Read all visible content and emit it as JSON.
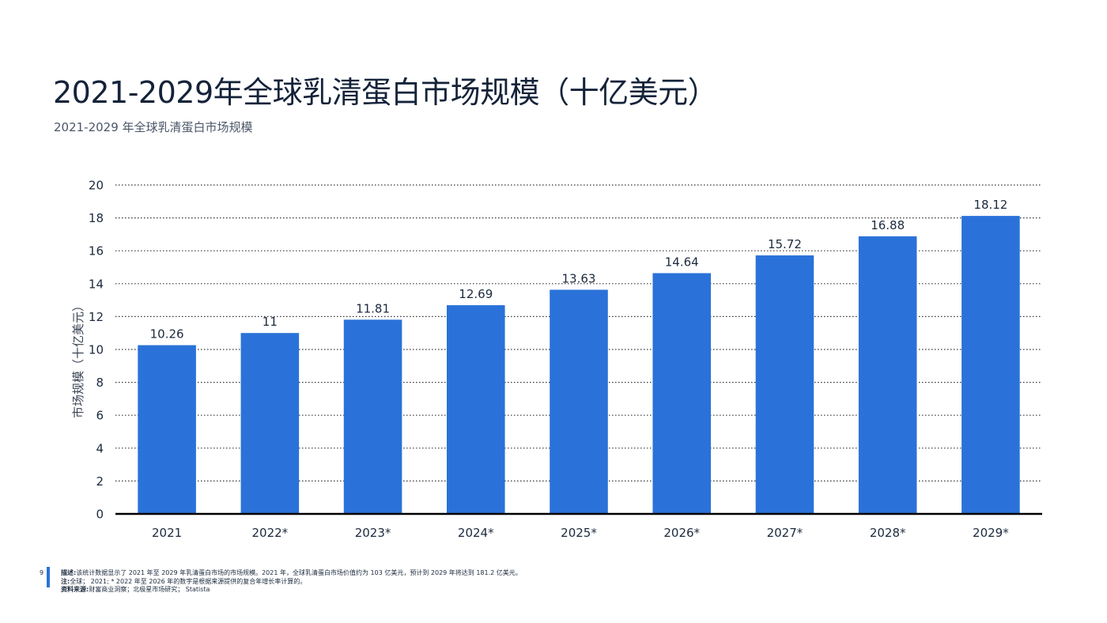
{
  "header": {
    "title": "2021-2029年全球乳清蛋白市场规模（十亿美元）",
    "subtitle": "2021-2029 年全球乳清蛋白市场规模"
  },
  "chart_data": {
    "type": "bar",
    "categories": [
      "2021",
      "2022*",
      "2023*",
      "2024*",
      "2025*",
      "2026*",
      "2027*",
      "2028*",
      "2029*"
    ],
    "values": [
      10.26,
      11,
      11.81,
      12.69,
      13.63,
      14.64,
      15.72,
      16.88,
      18.12
    ],
    "value_labels": [
      "10.26",
      "11",
      "11.81",
      "12.69",
      "13.63",
      "14.64",
      "15.72",
      "16.88",
      "18.12"
    ],
    "xlabel": "",
    "ylabel": "市场规模（十亿美元）",
    "ylim": [
      0,
      20
    ],
    "yticks": [
      0,
      2,
      4,
      6,
      8,
      10,
      12,
      14,
      16,
      18,
      20
    ],
    "grid": "horizontal-dotted",
    "legend": "none",
    "bar_color": "#2a72d9"
  },
  "footer": {
    "page_number": "9",
    "description_label": "描述:",
    "description_text": "该统计数据显示了 2021 年至 2029 年乳清蛋白市场的市场规模。2021 年，全球乳清蛋白市场价值约为 103 亿美元，预计到 2029 年将达到 181.2 亿美元。",
    "note_label": "注:",
    "note_text": "全球； 2021; * 2022 年至 2026 年的数字是根据来源提供的复合年增长率计算的。",
    "source_label": "资料来源:",
    "source_text": "财富商业洞察；北极星市场研究； Statista"
  }
}
